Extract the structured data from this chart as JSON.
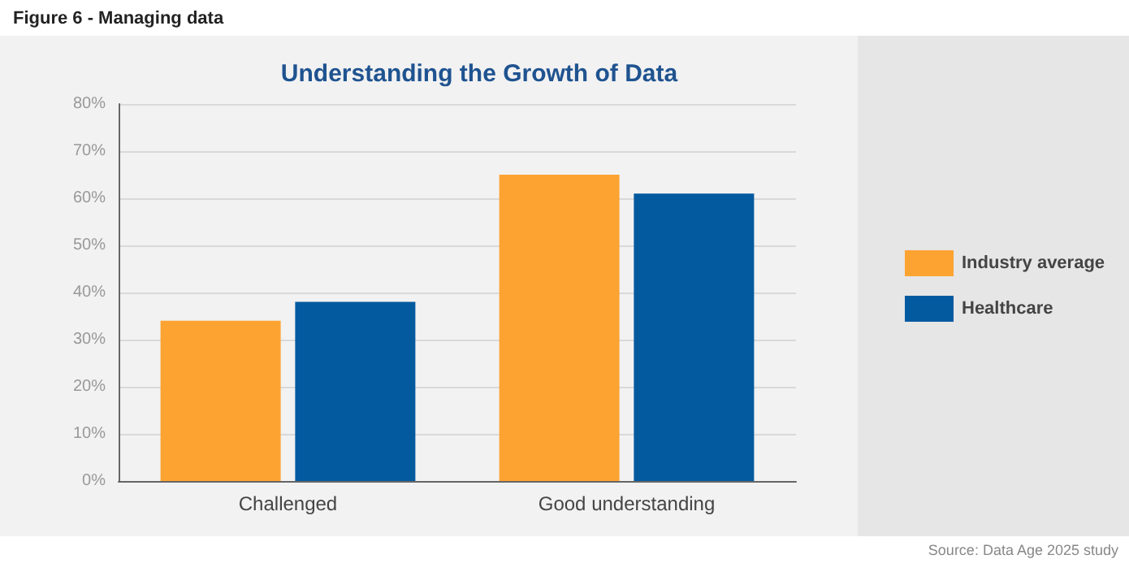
{
  "chart_data": {
    "type": "bar",
    "title": "Understanding the Growth of Data",
    "categories": [
      "Challenged",
      "Good understanding"
    ],
    "series": [
      {
        "name": "Industry average",
        "color": "#fda332",
        "values": [
          34,
          65
        ]
      },
      {
        "name": "Healthcare",
        "color": "#045a9f",
        "values": [
          38,
          61
        ]
      }
    ],
    "ylim": [
      0,
      80
    ],
    "yticks": [
      {
        "value": 0,
        "label": "0%"
      },
      {
        "value": 10,
        "label": "10%"
      },
      {
        "value": 20,
        "label": "20%"
      },
      {
        "value": 30,
        "label": "30%"
      },
      {
        "value": 40,
        "label": "40%"
      },
      {
        "value": 50,
        "label": "50%"
      },
      {
        "value": 60,
        "label": "60%"
      },
      {
        "value": 70,
        "label": "70%"
      },
      {
        "value": 80,
        "label": "80%"
      }
    ],
    "grid": "y",
    "legend": "right",
    "annotations": [
      "Figure 6 - Managing data",
      "Source: Data Age 2025 study"
    ]
  }
}
